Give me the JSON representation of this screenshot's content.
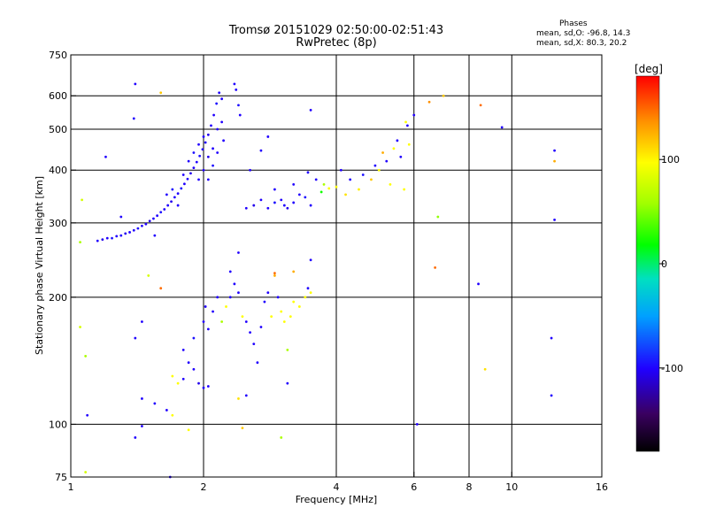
{
  "header": {
    "title": "Tromsø 20151029 02:50:00-02:51:43",
    "subtitle": "RwPretec (8p)"
  },
  "stats": {
    "heading": "Phases",
    "line_o": "mean, sd,O: -96.8, 14.3",
    "line_x": "mean, sd,X: 80.3, 20.2"
  },
  "colorbar": {
    "unit_label": "[deg]",
    "ticks": [
      {
        "value": 100,
        "label": "100"
      },
      {
        "value": 0,
        "label": "0"
      },
      {
        "value": -100,
        "label": "-100"
      }
    ],
    "range": [
      -180,
      180
    ]
  },
  "chart_data": {
    "type": "scatter",
    "title": "Tromsø 20151029 02:50:00-02:51:43",
    "subtitle": "RwPretec (8p)",
    "xlabel": "Frequency [MHz]",
    "ylabel": "Stationary phase Virtual Height [km]",
    "xscale": "log",
    "yscale": "log",
    "xlim": [
      1,
      16
    ],
    "ylim": [
      75,
      750
    ],
    "xticks": [
      {
        "value": 1,
        "label": "1"
      },
      {
        "value": 2,
        "label": "2"
      },
      {
        "value": 4,
        "label": "4"
      },
      {
        "value": 6,
        "label": "6"
      },
      {
        "value": 8,
        "label": "8"
      },
      {
        "value": 10,
        "label": "10"
      },
      {
        "value": 16,
        "label": "16"
      }
    ],
    "yticks": [
      {
        "value": 75,
        "label": "75"
      },
      {
        "value": 100,
        "label": "100"
      },
      {
        "value": 200,
        "label": "200"
      },
      {
        "value": 300,
        "label": "300"
      },
      {
        "value": 400,
        "label": "400"
      },
      {
        "value": 500,
        "label": "500"
      },
      {
        "value": 600,
        "label": "600"
      },
      {
        "value": 750,
        "label": "750"
      }
    ],
    "vertical_gridlines": [
      2,
      4,
      6,
      8,
      10
    ],
    "horizontal_gridlines": [
      100,
      200,
      300,
      400,
      500,
      600
    ],
    "color_by": "phase [deg]",
    "points": [
      {
        "x": 1.15,
        "y": 272,
        "phase": -100
      },
      {
        "x": 1.18,
        "y": 274,
        "phase": -105
      },
      {
        "x": 1.21,
        "y": 276,
        "phase": -100
      },
      {
        "x": 1.24,
        "y": 276,
        "phase": -95
      },
      {
        "x": 1.27,
        "y": 279,
        "phase": -100
      },
      {
        "x": 1.3,
        "y": 280,
        "phase": -100
      },
      {
        "x": 1.33,
        "y": 283,
        "phase": -105
      },
      {
        "x": 1.36,
        "y": 285,
        "phase": -100
      },
      {
        "x": 1.39,
        "y": 288,
        "phase": -100
      },
      {
        "x": 1.42,
        "y": 291,
        "phase": -95
      },
      {
        "x": 1.45,
        "y": 295,
        "phase": -100
      },
      {
        "x": 1.48,
        "y": 298,
        "phase": -100
      },
      {
        "x": 1.51,
        "y": 303,
        "phase": -105
      },
      {
        "x": 1.54,
        "y": 307,
        "phase": -100
      },
      {
        "x": 1.57,
        "y": 312,
        "phase": -100
      },
      {
        "x": 1.6,
        "y": 318,
        "phase": -95
      },
      {
        "x": 1.63,
        "y": 323,
        "phase": -100
      },
      {
        "x": 1.66,
        "y": 330,
        "phase": -100
      },
      {
        "x": 1.69,
        "y": 337,
        "phase": -105
      },
      {
        "x": 1.72,
        "y": 345,
        "phase": -100
      },
      {
        "x": 1.75,
        "y": 352,
        "phase": -100
      },
      {
        "x": 1.78,
        "y": 362,
        "phase": -95
      },
      {
        "x": 1.81,
        "y": 371,
        "phase": -100
      },
      {
        "x": 1.84,
        "y": 381,
        "phase": -100
      },
      {
        "x": 1.87,
        "y": 393,
        "phase": -105
      },
      {
        "x": 1.9,
        "y": 405,
        "phase": -100
      },
      {
        "x": 1.93,
        "y": 418,
        "phase": -100
      },
      {
        "x": 1.96,
        "y": 432,
        "phase": -95
      },
      {
        "x": 1.99,
        "y": 448,
        "phase": -100
      },
      {
        "x": 2.02,
        "y": 465,
        "phase": -100
      },
      {
        "x": 2.05,
        "y": 485,
        "phase": -105
      },
      {
        "x": 2.08,
        "y": 510,
        "phase": -100
      },
      {
        "x": 2.11,
        "y": 540,
        "phase": -100
      },
      {
        "x": 2.14,
        "y": 575,
        "phase": -95
      },
      {
        "x": 2.17,
        "y": 610,
        "phase": -100
      },
      {
        "x": 2.2,
        "y": 590,
        "phase": -100
      },
      {
        "x": 1.8,
        "y": 390,
        "phase": -100
      },
      {
        "x": 1.85,
        "y": 420,
        "phase": -100
      },
      {
        "x": 1.9,
        "y": 440,
        "phase": -95
      },
      {
        "x": 1.95,
        "y": 460,
        "phase": -100
      },
      {
        "x": 2.0,
        "y": 480,
        "phase": -100
      },
      {
        "x": 2.05,
        "y": 430,
        "phase": -105
      },
      {
        "x": 2.1,
        "y": 450,
        "phase": -100
      },
      {
        "x": 2.15,
        "y": 500,
        "phase": -100
      },
      {
        "x": 1.75,
        "y": 330,
        "phase": -100
      },
      {
        "x": 1.7,
        "y": 360,
        "phase": -95
      },
      {
        "x": 1.65,
        "y": 350,
        "phase": -100
      },
      {
        "x": 1.95,
        "y": 380,
        "phase": -100
      },
      {
        "x": 2.0,
        "y": 400,
        "phase": -100
      },
      {
        "x": 2.05,
        "y": 380,
        "phase": -100
      },
      {
        "x": 2.1,
        "y": 410,
        "phase": -95
      },
      {
        "x": 2.15,
        "y": 440,
        "phase": -100
      },
      {
        "x": 2.2,
        "y": 520,
        "phase": -100
      },
      {
        "x": 2.22,
        "y": 470,
        "phase": -100
      },
      {
        "x": 2.35,
        "y": 640,
        "phase": -100
      },
      {
        "x": 2.37,
        "y": 620,
        "phase": -100
      },
      {
        "x": 2.4,
        "y": 570,
        "phase": -95
      },
      {
        "x": 2.42,
        "y": 540,
        "phase": -100
      },
      {
        "x": 2.55,
        "y": 400,
        "phase": -100
      },
      {
        "x": 2.7,
        "y": 445,
        "phase": -100
      },
      {
        "x": 2.5,
        "y": 325,
        "phase": -100
      },
      {
        "x": 2.6,
        "y": 330,
        "phase": -105
      },
      {
        "x": 2.7,
        "y": 340,
        "phase": -100
      },
      {
        "x": 2.8,
        "y": 325,
        "phase": -100
      },
      {
        "x": 2.9,
        "y": 335,
        "phase": -95
      },
      {
        "x": 3.0,
        "y": 340,
        "phase": -100
      },
      {
        "x": 3.05,
        "y": 330,
        "phase": -100
      },
      {
        "x": 3.1,
        "y": 325,
        "phase": -105
      },
      {
        "x": 3.2,
        "y": 335,
        "phase": -100
      },
      {
        "x": 3.3,
        "y": 350,
        "phase": -100
      },
      {
        "x": 3.4,
        "y": 345,
        "phase": -95
      },
      {
        "x": 3.5,
        "y": 330,
        "phase": -100
      },
      {
        "x": 2.9,
        "y": 360,
        "phase": -100
      },
      {
        "x": 3.2,
        "y": 370,
        "phase": -100
      },
      {
        "x": 3.45,
        "y": 395,
        "phase": -100
      },
      {
        "x": 3.6,
        "y": 380,
        "phase": -100
      },
      {
        "x": 3.7,
        "y": 355,
        "phase": 5
      },
      {
        "x": 3.75,
        "y": 370,
        "phase": 60
      },
      {
        "x": 3.85,
        "y": 362,
        "phase": 100
      },
      {
        "x": 4.0,
        "y": 365,
        "phase": 100
      },
      {
        "x": 4.2,
        "y": 350,
        "phase": 110
      },
      {
        "x": 4.5,
        "y": 360,
        "phase": 105
      },
      {
        "x": 4.8,
        "y": 380,
        "phase": 120
      },
      {
        "x": 5.0,
        "y": 400,
        "phase": 100
      },
      {
        "x": 5.1,
        "y": 440,
        "phase": 130
      },
      {
        "x": 5.2,
        "y": 420,
        "phase": -100
      },
      {
        "x": 5.3,
        "y": 370,
        "phase": 100
      },
      {
        "x": 5.4,
        "y": 450,
        "phase": 100
      },
      {
        "x": 5.5,
        "y": 470,
        "phase": -100
      },
      {
        "x": 5.6,
        "y": 430,
        "phase": -100
      },
      {
        "x": 5.7,
        "y": 360,
        "phase": 100
      },
      {
        "x": 5.75,
        "y": 520,
        "phase": 100
      },
      {
        "x": 5.8,
        "y": 510,
        "phase": -100
      },
      {
        "x": 5.85,
        "y": 460,
        "phase": 100
      },
      {
        "x": 4.9,
        "y": 410,
        "phase": -100
      },
      {
        "x": 4.6,
        "y": 390,
        "phase": -95
      },
      {
        "x": 4.3,
        "y": 380,
        "phase": -100
      },
      {
        "x": 4.1,
        "y": 400,
        "phase": -100
      },
      {
        "x": 1.4,
        "y": 640,
        "phase": -100
      },
      {
        "x": 1.39,
        "y": 530,
        "phase": -100
      },
      {
        "x": 1.6,
        "y": 610,
        "phase": 120
      },
      {
        "x": 1.2,
        "y": 430,
        "phase": -100
      },
      {
        "x": 2.8,
        "y": 480,
        "phase": -100
      },
      {
        "x": 3.5,
        "y": 555,
        "phase": -100
      },
      {
        "x": 6.0,
        "y": 540,
        "phase": -100
      },
      {
        "x": 6.5,
        "y": 580,
        "phase": 140
      },
      {
        "x": 7.0,
        "y": 600,
        "phase": 120
      },
      {
        "x": 8.5,
        "y": 570,
        "phase": 150
      },
      {
        "x": 9.5,
        "y": 505,
        "phase": -100
      },
      {
        "x": 12.5,
        "y": 445,
        "phase": -100
      },
      {
        "x": 12.5,
        "y": 420,
        "phase": 130
      },
      {
        "x": 12.5,
        "y": 305,
        "phase": -100
      },
      {
        "x": 6.8,
        "y": 310,
        "phase": 50
      },
      {
        "x": 6.7,
        "y": 235,
        "phase": 150
      },
      {
        "x": 8.4,
        "y": 215,
        "phase": -100
      },
      {
        "x": 12.3,
        "y": 160,
        "phase": -100
      },
      {
        "x": 8.7,
        "y": 135,
        "phase": 110
      },
      {
        "x": 12.3,
        "y": 117,
        "phase": -100
      },
      {
        "x": 1.06,
        "y": 340,
        "phase": 80
      },
      {
        "x": 1.05,
        "y": 270,
        "phase": 60
      },
      {
        "x": 1.3,
        "y": 310,
        "phase": -100
      },
      {
        "x": 1.55,
        "y": 280,
        "phase": -100
      },
      {
        "x": 1.5,
        "y": 225,
        "phase": 80
      },
      {
        "x": 1.6,
        "y": 210,
        "phase": 150
      },
      {
        "x": 1.45,
        "y": 175,
        "phase": -100
      },
      {
        "x": 1.4,
        "y": 160,
        "phase": -100
      },
      {
        "x": 1.09,
        "y": 105,
        "phase": -100
      },
      {
        "x": 1.08,
        "y": 77,
        "phase": 80
      },
      {
        "x": 1.4,
        "y": 93,
        "phase": -100
      },
      {
        "x": 1.45,
        "y": 99,
        "phase": -100
      },
      {
        "x": 1.05,
        "y": 170,
        "phase": 80
      },
      {
        "x": 1.08,
        "y": 145,
        "phase": 60
      },
      {
        "x": 1.7,
        "y": 130,
        "phase": 100
      },
      {
        "x": 1.75,
        "y": 125,
        "phase": 100
      },
      {
        "x": 1.8,
        "y": 128,
        "phase": -100
      },
      {
        "x": 1.85,
        "y": 140,
        "phase": -100
      },
      {
        "x": 1.9,
        "y": 135,
        "phase": -100
      },
      {
        "x": 1.95,
        "y": 125,
        "phase": -105
      },
      {
        "x": 2.0,
        "y": 122,
        "phase": -100
      },
      {
        "x": 2.05,
        "y": 123,
        "phase": -100
      },
      {
        "x": 1.8,
        "y": 150,
        "phase": -100
      },
      {
        "x": 1.9,
        "y": 160,
        "phase": -95
      },
      {
        "x": 2.0,
        "y": 175,
        "phase": -100
      },
      {
        "x": 2.02,
        "y": 190,
        "phase": -100
      },
      {
        "x": 2.05,
        "y": 168,
        "phase": -100
      },
      {
        "x": 2.1,
        "y": 185,
        "phase": -100
      },
      {
        "x": 2.2,
        "y": 175,
        "phase": 60
      },
      {
        "x": 2.25,
        "y": 190,
        "phase": 100
      },
      {
        "x": 2.3,
        "y": 200,
        "phase": -100
      },
      {
        "x": 2.35,
        "y": 215,
        "phase": -100
      },
      {
        "x": 2.4,
        "y": 205,
        "phase": -100
      },
      {
        "x": 2.45,
        "y": 180,
        "phase": 100
      },
      {
        "x": 2.5,
        "y": 175,
        "phase": -100
      },
      {
        "x": 2.55,
        "y": 165,
        "phase": -100
      },
      {
        "x": 2.6,
        "y": 155,
        "phase": -100
      },
      {
        "x": 2.65,
        "y": 140,
        "phase": -100
      },
      {
        "x": 2.7,
        "y": 170,
        "phase": -100
      },
      {
        "x": 2.75,
        "y": 195,
        "phase": -100
      },
      {
        "x": 2.8,
        "y": 205,
        "phase": -100
      },
      {
        "x": 2.85,
        "y": 180,
        "phase": 100
      },
      {
        "x": 2.9,
        "y": 225,
        "phase": 130
      },
      {
        "x": 2.95,
        "y": 200,
        "phase": -100
      },
      {
        "x": 3.0,
        "y": 185,
        "phase": 100
      },
      {
        "x": 3.05,
        "y": 175,
        "phase": 100
      },
      {
        "x": 3.1,
        "y": 150,
        "phase": 60
      },
      {
        "x": 3.15,
        "y": 180,
        "phase": 100
      },
      {
        "x": 3.2,
        "y": 195,
        "phase": 100
      },
      {
        "x": 3.3,
        "y": 190,
        "phase": 100
      },
      {
        "x": 3.4,
        "y": 200,
        "phase": 100
      },
      {
        "x": 3.45,
        "y": 210,
        "phase": -100
      },
      {
        "x": 3.5,
        "y": 205,
        "phase": 100
      },
      {
        "x": 3.5,
        "y": 245,
        "phase": -100
      },
      {
        "x": 3.2,
        "y": 230,
        "phase": 130
      },
      {
        "x": 2.4,
        "y": 255,
        "phase": -100
      },
      {
        "x": 2.9,
        "y": 228,
        "phase": 150
      },
      {
        "x": 3.1,
        "y": 125,
        "phase": -100
      },
      {
        "x": 3.0,
        "y": 93,
        "phase": 60
      },
      {
        "x": 2.4,
        "y": 115,
        "phase": 110
      },
      {
        "x": 2.45,
        "y": 98,
        "phase": 120
      },
      {
        "x": 1.85,
        "y": 97,
        "phase": 100
      },
      {
        "x": 1.7,
        "y": 105,
        "phase": 100
      },
      {
        "x": 1.65,
        "y": 108,
        "phase": -100
      },
      {
        "x": 1.68,
        "y": 75,
        "phase": -100
      },
      {
        "x": 1.55,
        "y": 112,
        "phase": -100
      },
      {
        "x": 2.5,
        "y": 117,
        "phase": -100
      },
      {
        "x": 6.1,
        "y": 100,
        "phase": -100
      },
      {
        "x": 1.45,
        "y": 115,
        "phase": -100
      },
      {
        "x": 2.15,
        "y": 200,
        "phase": -100
      },
      {
        "x": 2.3,
        "y": 230,
        "phase": -100
      }
    ]
  }
}
